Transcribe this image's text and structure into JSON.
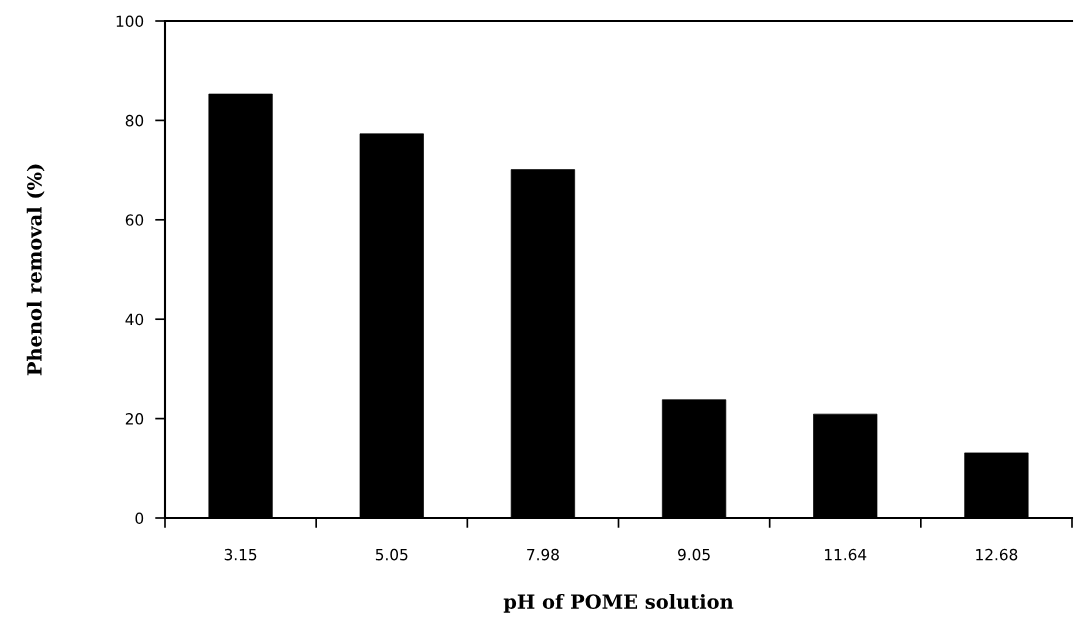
{
  "chart_data": {
    "type": "bar",
    "xlabel": "pH of POME solution",
    "ylabel": "Phenol removal (%)",
    "categories": [
      "3.15",
      "5.05",
      "7.98",
      "9.05",
      "11.64",
      "12.68"
    ],
    "values": [
      85.3,
      77.3,
      70.1,
      23.8,
      20.9,
      13.1
    ],
    "color": "#000000",
    "ylim": [
      0,
      100
    ],
    "yticks": [
      0,
      20,
      40,
      60,
      80,
      100
    ],
    "grid": false
  }
}
